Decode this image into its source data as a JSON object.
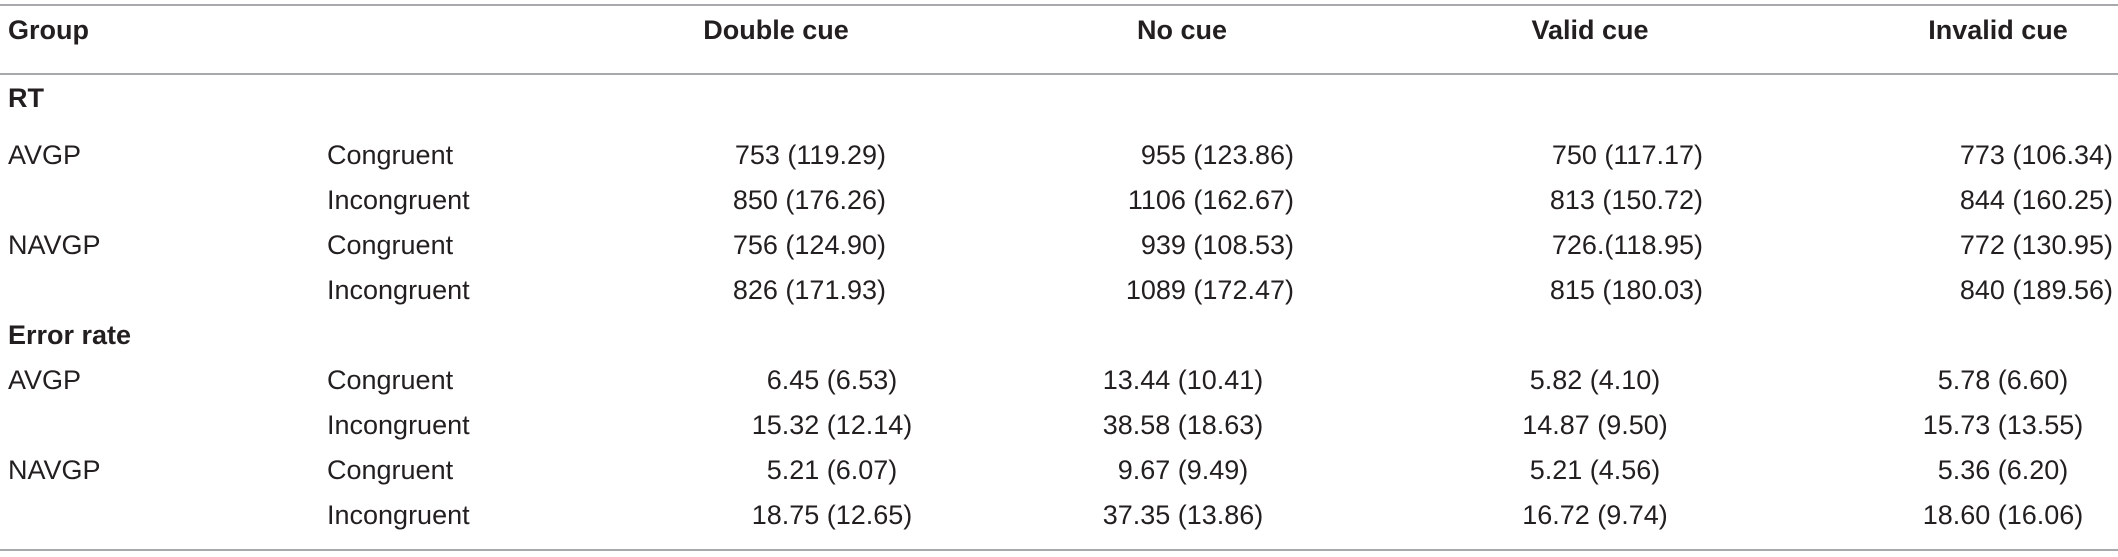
{
  "header": {
    "group": "Group",
    "col_double": "Double cue",
    "col_no": "No cue",
    "col_valid": "Valid cue",
    "col_invalid": "Invalid cue"
  },
  "sections": [
    {
      "title": "RT",
      "rows": [
        {
          "group": "AVGP",
          "condition": "Congruent",
          "double": "753 (119.29)",
          "no": "955 (123.86)",
          "valid": "750 (117.17)",
          "invalid": "773 (106.34)"
        },
        {
          "group": "",
          "condition": "Incongruent",
          "double": "850 (176.26)",
          "no": "1106 (162.67)",
          "valid": "813 (150.72)",
          "invalid": "844 (160.25)"
        },
        {
          "group": "NAVGP",
          "condition": "Congruent",
          "double": "756 (124.90)",
          "no": "939 (108.53)",
          "valid": "726.(118.95)",
          "invalid": "772 (130.95)"
        },
        {
          "group": "",
          "condition": "Incongruent",
          "double": "826 (171.93)",
          "no": "1089 (172.47)",
          "valid": "815 (180.03)",
          "invalid": "840 (189.56)"
        }
      ]
    },
    {
      "title": "Error rate",
      "rows": [
        {
          "group": "AVGP",
          "condition": "Congruent",
          "double": "6.45 (6.53)",
          "no": "13.44 (10.41)",
          "valid": "5.82 (4.10)",
          "invalid": "5.78 (6.60)"
        },
        {
          "group": "",
          "condition": "Incongruent",
          "double": "15.32 (12.14)",
          "no": "38.58 (18.63)",
          "valid": "14.87 (9.50)",
          "invalid": "15.73 (13.55)"
        },
        {
          "group": "NAVGP",
          "condition": "Congruent",
          "double": "5.21 (6.07)",
          "no": "9.67 (9.49)",
          "valid": "5.21 (4.56)",
          "invalid": "5.36 (6.20)"
        },
        {
          "group": "",
          "condition": "Incongruent",
          "double": "18.75 (12.65)",
          "no": "37.35 (13.86)",
          "valid": "16.72 (9.74)",
          "invalid": "18.60 (16.06)"
        }
      ]
    }
  ]
}
